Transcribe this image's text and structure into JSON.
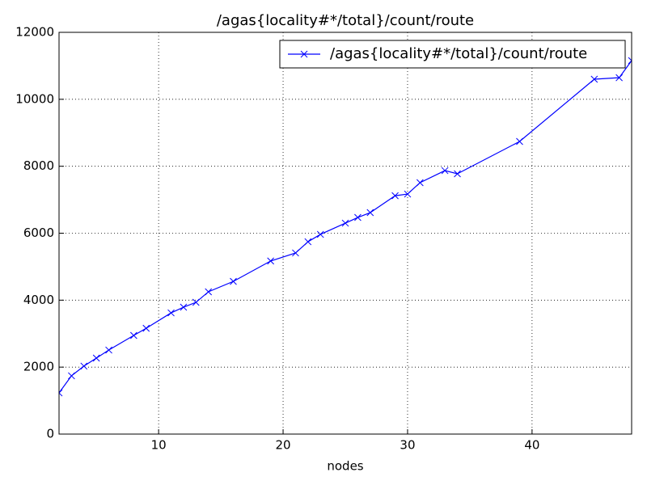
{
  "chart_data": {
    "type": "line",
    "title": "/agas{locality#*/total}/count/route",
    "x_label": "nodes",
    "x": [
      2,
      3,
      4,
      5,
      6,
      8,
      9,
      11,
      12,
      13,
      14,
      16,
      19,
      21,
      22,
      23,
      25,
      26,
      27,
      29,
      30,
      31,
      33,
      34,
      39,
      45,
      47,
      48
    ],
    "series": [
      {
        "name": "/agas{locality#*/total}/count/route",
        "color": "#0000ff",
        "values": [
          1230,
          1740,
          2030,
          2270,
          2510,
          2945,
          3160,
          3620,
          3790,
          3935,
          4250,
          4560,
          5170,
          5410,
          5745,
          5965,
          6300,
          6470,
          6615,
          7120,
          7170,
          7510,
          7870,
          7775,
          8740,
          10600,
          10645,
          11155
        ]
      }
    ],
    "xlim": [
      2,
      48
    ],
    "xticks": [
      10,
      20,
      30,
      40
    ],
    "ylim": [
      0,
      12000
    ],
    "yticks": [
      0,
      2000,
      4000,
      6000,
      8000,
      10000,
      12000
    ],
    "grid": true,
    "legend": "upper right"
  }
}
